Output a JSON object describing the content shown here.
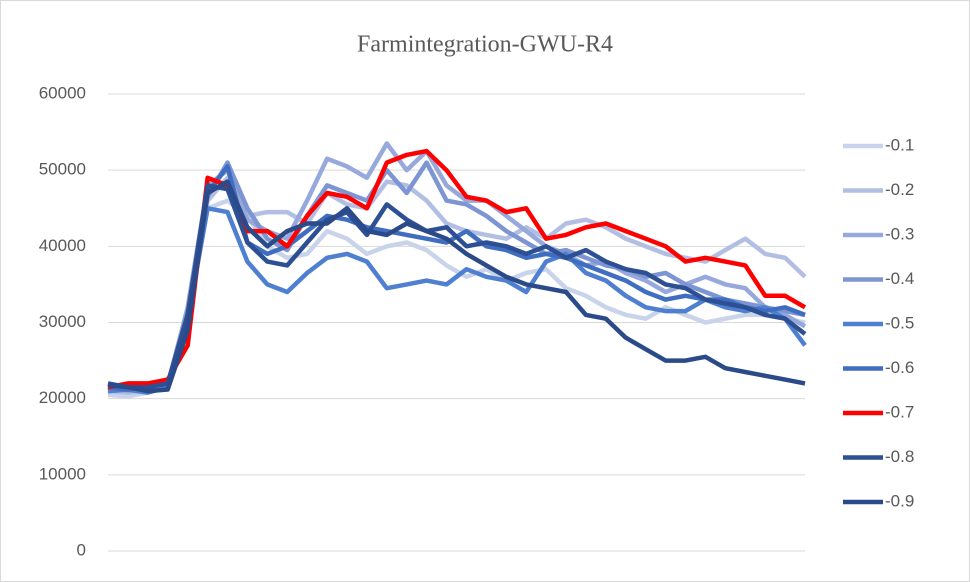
{
  "chart_data": {
    "type": "line",
    "title": "Farmintegration-GWU-R4",
    "categories": [
      null,
      null,
      null,
      null,
      null,
      null,
      null,
      null,
      null,
      null,
      null,
      null,
      null,
      null,
      null,
      null,
      null,
      null,
      null,
      null,
      null,
      null,
      null,
      null,
      null,
      null,
      null,
      null,
      null,
      null,
      null,
      null,
      null,
      null,
      null,
      null
    ],
    "ylim": [
      0,
      60000
    ],
    "yticks": [
      0,
      10000,
      20000,
      30000,
      40000,
      50000,
      60000
    ],
    "grid": true,
    "legend": "right",
    "series": [
      {
        "name": "-0.1",
        "color": "#c9d3ea",
        "values": [
          20500,
          20300,
          20800,
          21500,
          30000,
          45000,
          46000,
          44000,
          40000,
          38500,
          39000,
          42000,
          41000,
          39000,
          40000,
          40500,
          39500,
          37500,
          36000,
          37000,
          35500,
          36500,
          37000,
          34500,
          33500,
          32000,
          31000,
          30500,
          32000,
          31000,
          30000,
          30500,
          31000,
          31000,
          30500,
          30000
        ]
      },
      {
        "name": "-0.2",
        "color": "#b2bfe2",
        "values": [
          21000,
          20800,
          21000,
          21500,
          31000,
          46000,
          49000,
          44000,
          44500,
          44500,
          43000,
          47000,
          45500,
          45000,
          48500,
          48000,
          46000,
          43000,
          42000,
          41500,
          41000,
          42500,
          41000,
          43000,
          43500,
          42500,
          41000,
          40000,
          39000,
          38500,
          38000,
          39500,
          41000,
          39000,
          38500,
          36000
        ]
      },
      {
        "name": "-0.3",
        "color": "#97a9dc",
        "values": [
          21500,
          21000,
          21200,
          21800,
          32000,
          48000,
          50000,
          43500,
          42000,
          41000,
          46000,
          51500,
          50500,
          49000,
          53500,
          50000,
          52500,
          48000,
          46000,
          46000,
          44000,
          42000,
          40000,
          39000,
          37500,
          38000,
          36500,
          35500,
          34000,
          35000,
          36000,
          35000,
          34500,
          32000,
          31000,
          29500
        ]
      },
      {
        "name": "-0.4",
        "color": "#7d95d3",
        "values": [
          21000,
          21200,
          21000,
          21500,
          31500,
          46500,
          51000,
          45000,
          41000,
          39500,
          44000,
          48000,
          47000,
          46000,
          50000,
          47000,
          51000,
          46000,
          45500,
          44000,
          42000,
          40500,
          39000,
          39500,
          38500,
          37500,
          37000,
          36000,
          36500,
          35000,
          34000,
          33000,
          32500,
          32000,
          31500,
          31000
        ]
      },
      {
        "name": "-0.5",
        "color": "#4f7fd0",
        "values": [
          21000,
          21200,
          20800,
          21500,
          30500,
          45000,
          44500,
          38000,
          35000,
          34000,
          36500,
          38500,
          39000,
          38000,
          34500,
          35000,
          35500,
          35000,
          37000,
          36000,
          35500,
          34000,
          38000,
          39000,
          36500,
          35500,
          33500,
          32000,
          31500,
          31500,
          33000,
          32000,
          31500,
          32000,
          30500,
          27000
        ]
      },
      {
        "name": "-0.6",
        "color": "#3f6dbf",
        "values": [
          21500,
          21200,
          21500,
          22000,
          31000,
          47000,
          50500,
          40500,
          39000,
          40000,
          42000,
          44000,
          43500,
          42500,
          42000,
          41500,
          41000,
          40500,
          42000,
          40000,
          39500,
          38500,
          39000,
          38500,
          37500,
          36500,
          35500,
          34000,
          33000,
          33500,
          33000,
          33000,
          32000,
          31500,
          32000,
          31000
        ]
      },
      {
        "name": "-0.7",
        "color": "#ff0000",
        "values": [
          21500,
          22000,
          22000,
          22500,
          27000,
          49000,
          48000,
          42000,
          42000,
          40000,
          44000,
          47000,
          46500,
          45000,
          51000,
          52000,
          52500,
          50000,
          46500,
          46000,
          44500,
          45000,
          41000,
          41500,
          42500,
          43000,
          42000,
          41000,
          40000,
          38000,
          38500,
          38000,
          37500,
          33500,
          33500,
          32000
        ]
      },
      {
        "name": "-0.8",
        "color": "#2d4f93",
        "values": [
          22000,
          21500,
          21500,
          22000,
          31000,
          48000,
          47500,
          40500,
          38000,
          37500,
          40500,
          43500,
          44500,
          41500,
          45500,
          43500,
          42000,
          42500,
          40000,
          40500,
          40000,
          39000,
          40000,
          38500,
          39500,
          38000,
          37000,
          36500,
          35000,
          34500,
          33000,
          32500,
          32000,
          31000,
          30500,
          28500
        ]
      },
      {
        "name": "-0.9",
        "color": "#2a4a8a",
        "values": [
          21800,
          21500,
          21000,
          21200,
          29000,
          47000,
          48500,
          42500,
          40000,
          42000,
          43000,
          43000,
          45000,
          42000,
          41500,
          43000,
          42000,
          41000,
          39000,
          37500,
          36000,
          35000,
          34500,
          34000,
          31000,
          30500,
          28000,
          26500,
          25000,
          25000,
          25500,
          24000,
          23500,
          23000,
          22500,
          22000
        ]
      }
    ]
  }
}
